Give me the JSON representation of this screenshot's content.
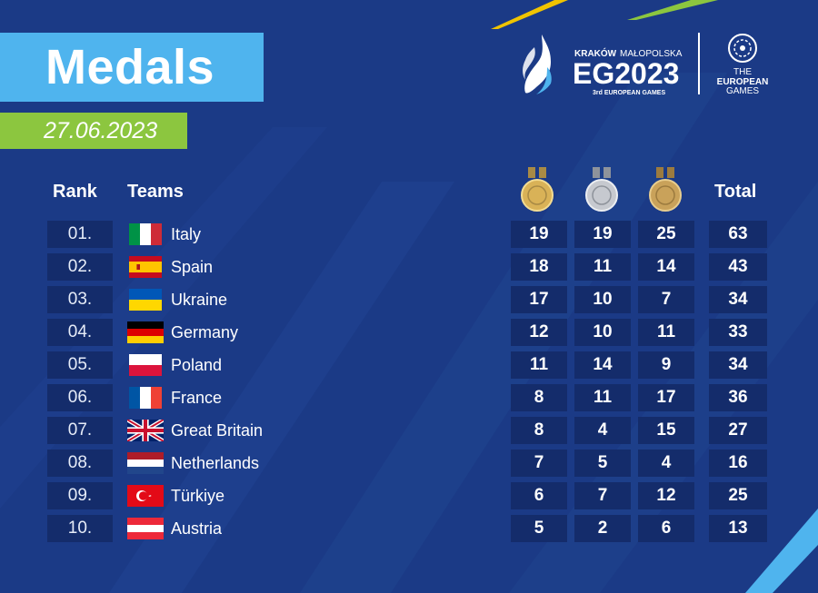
{
  "header": {
    "title": "Medals",
    "date": "27.06.2023"
  },
  "logo": {
    "city": "KRAKÓW",
    "region": "MAŁOPOLSKA",
    "mark": "EG2023",
    "edition": "3rd EUROPEAN GAMES",
    "partner_line1": "THE",
    "partner_line2": "EUROPEAN",
    "partner_line3": "GAMES"
  },
  "columns": {
    "rank": "Rank",
    "teams": "Teams",
    "total": "Total"
  },
  "icons": {
    "gold": "gold-medal-icon",
    "silver": "silver-medal-icon",
    "bronze": "bronze-medal-icon"
  },
  "colors": {
    "background": "#1b3a86",
    "title_box": "#4fb4ee",
    "date_box": "#8cc63f",
    "cell": "#142c6b",
    "gold": "#d9b257",
    "silver": "#c6c9cf",
    "bronze": "#c9a25a"
  },
  "rows": [
    {
      "rank": "01.",
      "team": "Italy",
      "flag": "italy-flag-icon",
      "gold": "19",
      "silver": "19",
      "bronze": "25",
      "total": "63"
    },
    {
      "rank": "02.",
      "team": "Spain",
      "flag": "spain-flag-icon",
      "gold": "18",
      "silver": "11",
      "bronze": "14",
      "total": "43"
    },
    {
      "rank": "03.",
      "team": "Ukraine",
      "flag": "ukraine-flag-icon",
      "gold": "17",
      "silver": "10",
      "bronze": "7",
      "total": "34"
    },
    {
      "rank": "04.",
      "team": "Germany",
      "flag": "germany-flag-icon",
      "gold": "12",
      "silver": "10",
      "bronze": "11",
      "total": "33"
    },
    {
      "rank": "05.",
      "team": "Poland",
      "flag": "poland-flag-icon",
      "gold": "11",
      "silver": "14",
      "bronze": "9",
      "total": "34"
    },
    {
      "rank": "06.",
      "team": "France",
      "flag": "france-flag-icon",
      "gold": "8",
      "silver": "11",
      "bronze": "17",
      "total": "36"
    },
    {
      "rank": "07.",
      "team": "Great Britain",
      "flag": "great-britain-flag-icon",
      "gold": "8",
      "silver": "4",
      "bronze": "15",
      "total": "27"
    },
    {
      "rank": "08.",
      "team": "Netherlands",
      "flag": "netherlands-flag-icon",
      "gold": "7",
      "silver": "5",
      "bronze": "4",
      "total": "16"
    },
    {
      "rank": "09.",
      "team": "Türkiye",
      "flag": "turkiye-flag-icon",
      "gold": "6",
      "silver": "7",
      "bronze": "12",
      "total": "25"
    },
    {
      "rank": "10.",
      "team": "Austria",
      "flag": "austria-flag-icon",
      "gold": "5",
      "silver": "2",
      "bronze": "6",
      "total": "13"
    }
  ]
}
